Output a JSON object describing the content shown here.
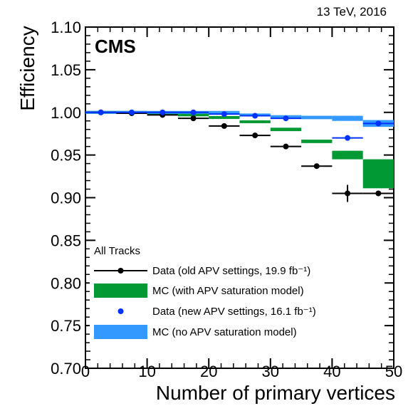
{
  "chart_data": {
    "type": "scatter",
    "header": "13 TeV, 2016",
    "experiment_label": "CMS",
    "xlabel": "Number of primary vertices",
    "ylabel": "Efficiency",
    "xlim": [
      0,
      50
    ],
    "ylim": [
      0.7,
      1.1
    ],
    "x_ticks": [
      0,
      10,
      20,
      30,
      40,
      50
    ],
    "x_tick_labels": [
      "0",
      "10",
      "20",
      "30",
      "40",
      "50"
    ],
    "y_ticks": [
      0.7,
      0.75,
      0.8,
      0.85,
      0.9,
      0.95,
      1.0,
      1.05,
      1.1
    ],
    "y_tick_labels": [
      "0.70",
      "0.75",
      "0.80",
      "0.85",
      "0.90",
      "0.95",
      "1.00",
      "1.05",
      "1.10"
    ],
    "legend_title": "All Tracks",
    "legend_placement": "bottom-left",
    "x_bins": [
      [
        0,
        5
      ],
      [
        5,
        10
      ],
      [
        10,
        15
      ],
      [
        15,
        20
      ],
      [
        20,
        25
      ],
      [
        25,
        30
      ],
      [
        30,
        35
      ],
      [
        35,
        40
      ],
      [
        40,
        45
      ],
      [
        45,
        50
      ]
    ],
    "series": [
      {
        "name": "Data (old APV settings, 19.9 fb⁻¹)",
        "style": "points",
        "color": "#000000",
        "values": [
          1.0,
          0.999,
          0.997,
          0.993,
          0.984,
          0.973,
          0.96,
          0.937,
          0.905,
          0.905
        ],
        "errors": [
          0.0,
          0.0,
          0.0,
          0.002,
          0.002,
          0.002,
          0.002,
          0.002,
          0.01,
          0.003
        ]
      },
      {
        "name": "MC (with APV saturation model)",
        "style": "band",
        "color": "#009933",
        "values": [
          1.0,
          1.0,
          0.999,
          0.997,
          0.994,
          0.989,
          0.98,
          0.966,
          0.95,
          0.928
        ],
        "errors": [
          0.0005,
          0.0005,
          0.0005,
          0.0008,
          0.001,
          0.0015,
          0.002,
          0.002,
          0.005,
          0.017
        ]
      },
      {
        "name": "Data (new APV settings, 16.1 fb⁻¹)",
        "style": "points",
        "color": "#0033ff",
        "values": [
          1.0,
          1.0,
          1.0,
          1.0,
          0.998,
          0.996,
          0.993,
          null,
          0.97,
          0.987
        ],
        "errors": [
          0.0,
          0.0,
          0.0,
          0.0,
          0.0,
          0.0,
          0.0,
          0.0,
          0.0,
          0.0
        ]
      },
      {
        "name": "MC (no APV saturation model)",
        "style": "band",
        "color": "#3399ff",
        "values": [
          1.0,
          1.0,
          1.0,
          1.0,
          1.0,
          0.997,
          0.995,
          0.994,
          0.993,
          0.987
        ],
        "errors": [
          0.0005,
          0.0005,
          0.0005,
          0.0005,
          0.0008,
          0.001,
          0.001,
          0.002,
          0.003,
          0.004
        ]
      }
    ]
  }
}
